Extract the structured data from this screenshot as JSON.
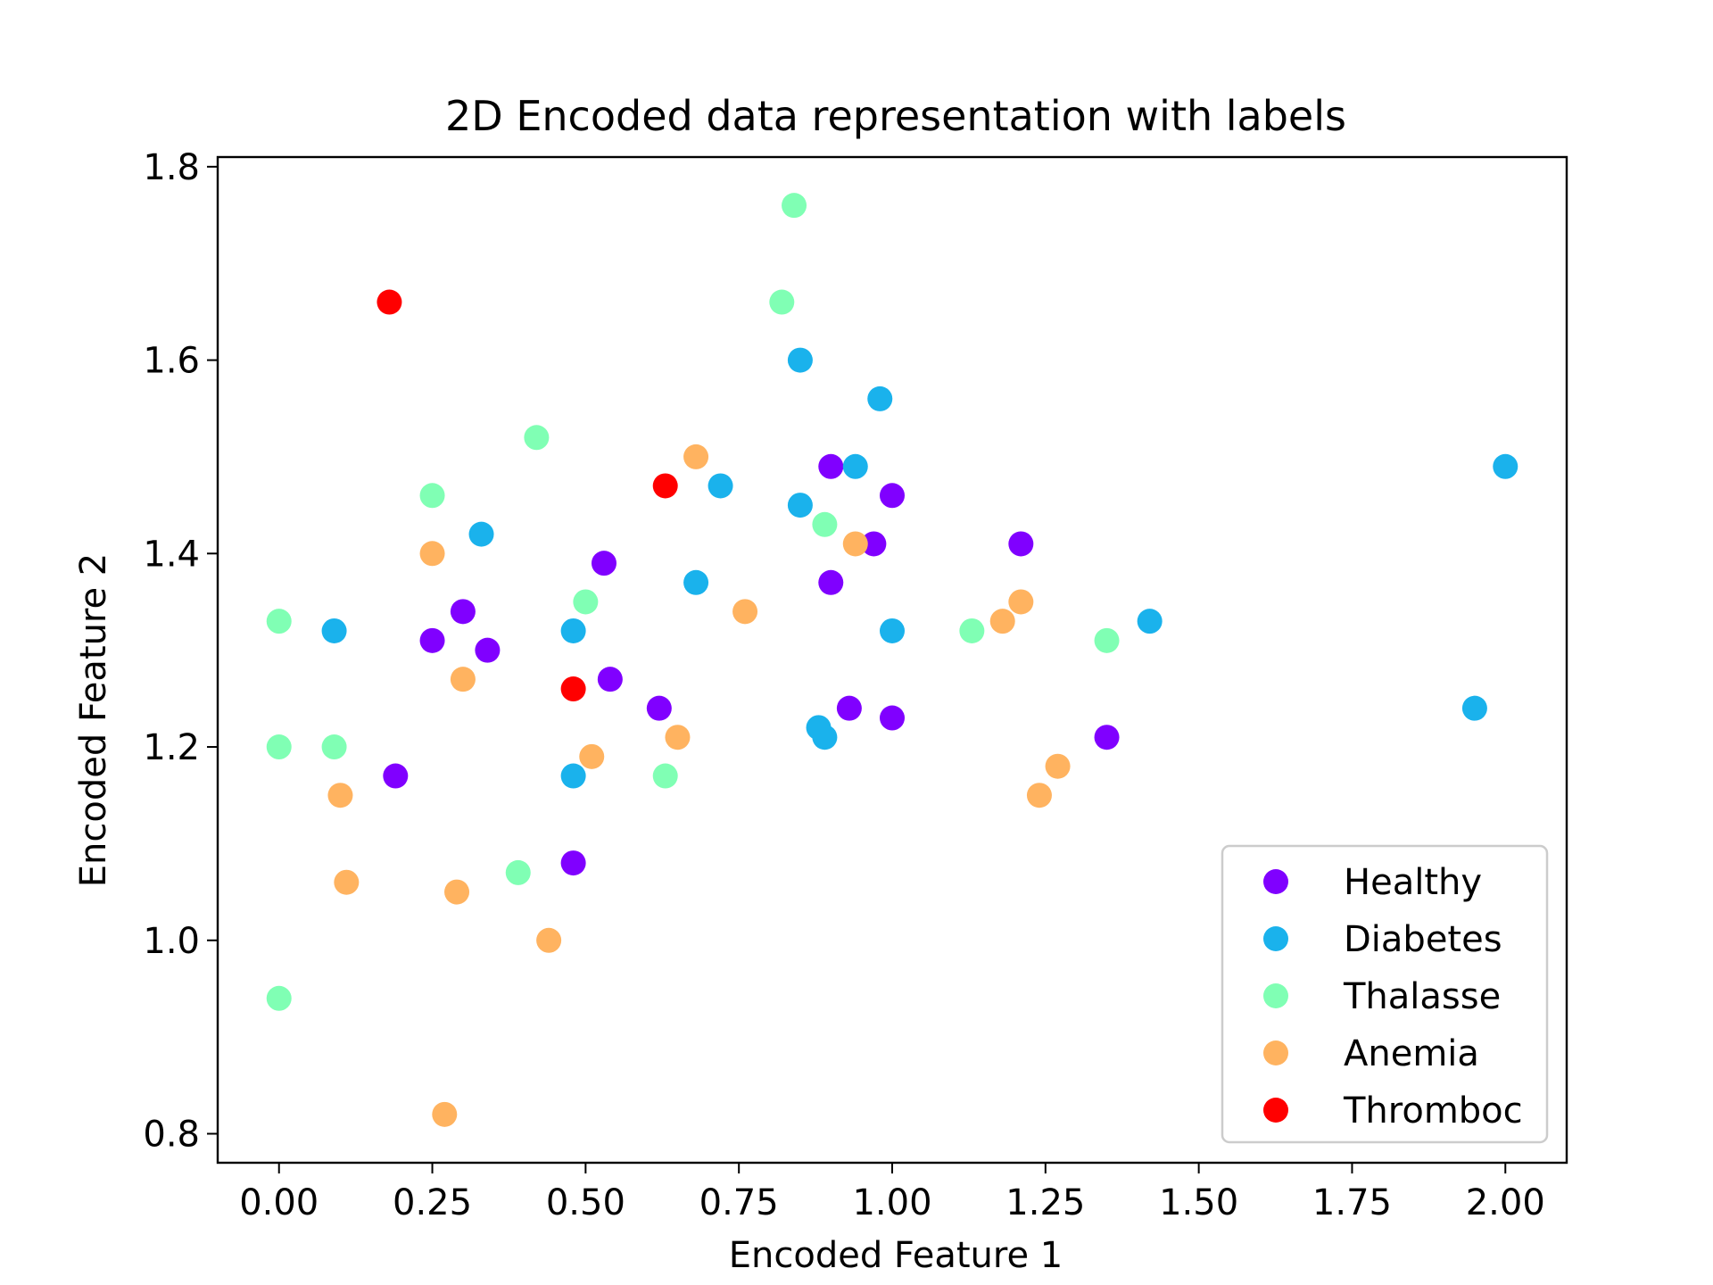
{
  "chart_data": {
    "type": "scatter",
    "title": "2D Encoded data representation with labels",
    "xlabel": "Encoded Feature 1",
    "ylabel": "Encoded Feature 2",
    "xlim": [
      -0.1,
      2.1
    ],
    "ylim": [
      0.77,
      1.81
    ],
    "xticks": [
      0.0,
      0.25,
      0.5,
      0.75,
      1.0,
      1.25,
      1.5,
      1.75,
      2.0
    ],
    "xtick_labels": [
      "0.00",
      "0.25",
      "0.50",
      "0.75",
      "1.00",
      "1.25",
      "1.50",
      "1.75",
      "2.00"
    ],
    "yticks": [
      0.8,
      1.0,
      1.2,
      1.4,
      1.6,
      1.8
    ],
    "ytick_labels": [
      "0.8",
      "1.0",
      "1.2",
      "1.4",
      "1.6",
      "1.8"
    ],
    "grid": false,
    "legend_position": "lower-right",
    "series": [
      {
        "name": "Healthy",
        "color": "#8000ff",
        "points": [
          [
            0.9,
            1.49
          ],
          [
            1.0,
            1.46
          ],
          [
            0.53,
            1.39
          ],
          [
            0.97,
            1.41
          ],
          [
            0.9,
            1.37
          ],
          [
            1.21,
            1.41
          ],
          [
            0.3,
            1.34
          ],
          [
            0.25,
            1.31
          ],
          [
            0.34,
            1.3
          ],
          [
            0.54,
            1.27
          ],
          [
            0.62,
            1.24
          ],
          [
            0.93,
            1.24
          ],
          [
            1.0,
            1.23
          ],
          [
            1.35,
            1.21
          ],
          [
            0.19,
            1.17
          ],
          [
            0.48,
            1.08
          ]
        ]
      },
      {
        "name": "Diabetes",
        "color": "#1ab2ec",
        "points": [
          [
            0.85,
            1.6
          ],
          [
            0.98,
            1.56
          ],
          [
            2.0,
            1.49
          ],
          [
            0.94,
            1.49
          ],
          [
            0.72,
            1.47
          ],
          [
            0.85,
            1.45
          ],
          [
            0.33,
            1.42
          ],
          [
            0.68,
            1.37
          ],
          [
            0.09,
            1.32
          ],
          [
            0.48,
            1.32
          ],
          [
            1.0,
            1.32
          ],
          [
            1.42,
            1.33
          ],
          [
            1.95,
            1.24
          ],
          [
            0.88,
            1.22
          ],
          [
            0.89,
            1.21
          ],
          [
            0.48,
            1.17
          ]
        ]
      },
      {
        "name": "Thalasse",
        "color": "#80ffb4",
        "points": [
          [
            0.84,
            1.76
          ],
          [
            0.82,
            1.66
          ],
          [
            0.42,
            1.52
          ],
          [
            0.25,
            1.46
          ],
          [
            0.89,
            1.43
          ],
          [
            0.0,
            1.33
          ],
          [
            0.5,
            1.35
          ],
          [
            1.13,
            1.32
          ],
          [
            1.35,
            1.31
          ],
          [
            0.0,
            1.2
          ],
          [
            0.09,
            1.2
          ],
          [
            0.63,
            1.17
          ],
          [
            0.39,
            1.07
          ],
          [
            0.0,
            0.94
          ]
        ]
      },
      {
        "name": "Anemia",
        "color": "#ffb360",
        "points": [
          [
            0.68,
            1.5
          ],
          [
            0.25,
            1.4
          ],
          [
            0.94,
            1.41
          ],
          [
            0.76,
            1.34
          ],
          [
            1.21,
            1.35
          ],
          [
            1.18,
            1.33
          ],
          [
            0.3,
            1.27
          ],
          [
            0.65,
            1.21
          ],
          [
            0.51,
            1.19
          ],
          [
            1.27,
            1.18
          ],
          [
            0.1,
            1.15
          ],
          [
            1.24,
            1.15
          ],
          [
            0.11,
            1.06
          ],
          [
            0.29,
            1.05
          ],
          [
            0.44,
            1.0
          ],
          [
            0.27,
            0.82
          ]
        ]
      },
      {
        "name": "Thromboc",
        "color": "#ff0000",
        "points": [
          [
            0.18,
            1.66
          ],
          [
            0.63,
            1.47
          ],
          [
            0.48,
            1.26
          ]
        ]
      }
    ]
  }
}
